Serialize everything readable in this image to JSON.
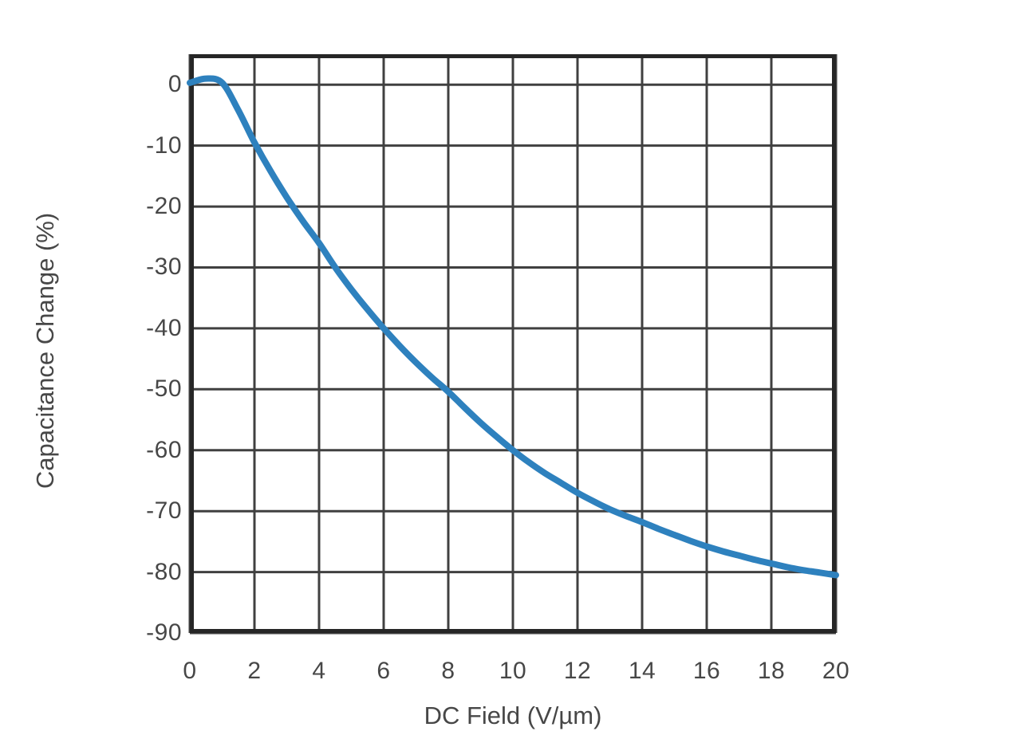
{
  "chart_data": {
    "type": "line",
    "title": "",
    "xlabel": "DC Field (V/µm)",
    "ylabel": "Capacitance Change (%)",
    "xlim": [
      0,
      20
    ],
    "ylim": [
      -90,
      5
    ],
    "grid": true,
    "legend": "none",
    "x_gridlines": [
      0,
      2,
      4,
      6,
      8,
      10,
      12,
      14,
      16,
      18,
      20
    ],
    "y_gridlines": [
      0,
      -10,
      -20,
      -30,
      -40,
      -50,
      -60,
      -70,
      -80,
      -90
    ],
    "x_ticks": [
      "0",
      "2",
      "4",
      "6",
      "8",
      "10",
      "12",
      "14",
      "16",
      "18",
      "20"
    ],
    "y_ticks": [
      "0",
      "-10",
      "-20",
      "-30",
      "-40",
      "-50",
      "-60",
      "-70",
      "-80",
      "-90"
    ],
    "series": [
      {
        "name": "capacitance-change-vs-dc-field",
        "color": "#2E81BE",
        "points": [
          [
            0,
            0.3
          ],
          [
            0.5,
            1.0
          ],
          [
            1,
            0.3
          ],
          [
            1.5,
            -4.2
          ],
          [
            2,
            -9.5
          ],
          [
            2.5,
            -14.2
          ],
          [
            3,
            -18.5
          ],
          [
            3.5,
            -22.4
          ],
          [
            4,
            -26
          ],
          [
            4.5,
            -30
          ],
          [
            5,
            -33.6
          ],
          [
            5.5,
            -36.9
          ],
          [
            6,
            -40
          ],
          [
            6.5,
            -42.9
          ],
          [
            7,
            -45.6
          ],
          [
            7.5,
            -48.1
          ],
          [
            8,
            -50.4
          ],
          [
            8.5,
            -53
          ],
          [
            9,
            -55.5
          ],
          [
            9.5,
            -57.8
          ],
          [
            10,
            -60
          ],
          [
            10.5,
            -62
          ],
          [
            11,
            -63.8
          ],
          [
            11.5,
            -65.4
          ],
          [
            12,
            -67
          ],
          [
            12.5,
            -68.4
          ],
          [
            13,
            -69.7
          ],
          [
            13.5,
            -70.8
          ],
          [
            14,
            -71.8
          ],
          [
            14.5,
            -72.9
          ],
          [
            15,
            -73.9
          ],
          [
            15.5,
            -74.9
          ],
          [
            16,
            -75.8
          ],
          [
            16.5,
            -76.6
          ],
          [
            17,
            -77.3
          ],
          [
            17.5,
            -78
          ],
          [
            18,
            -78.6
          ],
          [
            18.5,
            -79.2
          ],
          [
            19,
            -79.7
          ],
          [
            19.5,
            -80.1
          ],
          [
            20,
            -80.5
          ]
        ]
      }
    ],
    "colors": {
      "background": "#ffffff",
      "grid": "#404040",
      "frame": "#262626",
      "curve": "#2E81BE",
      "tick_label": "#474747",
      "axis_label": "#474747"
    }
  }
}
